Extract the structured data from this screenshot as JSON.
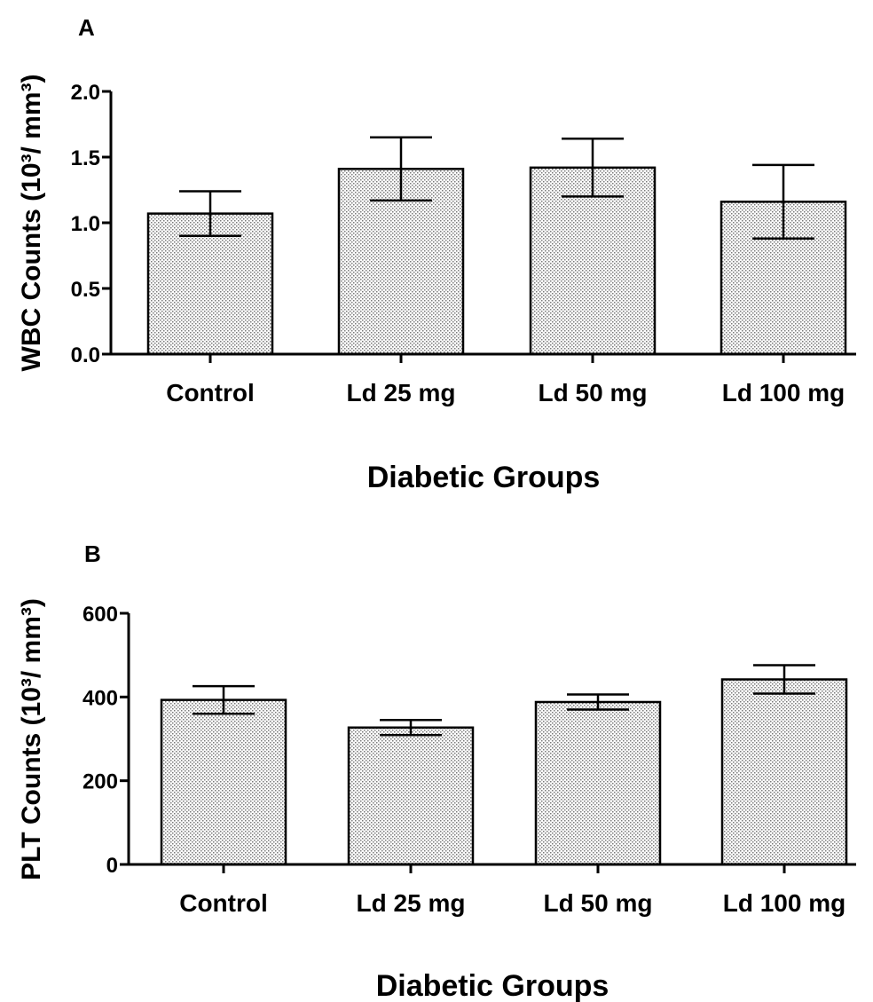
{
  "chart_data": [
    {
      "type": "bar",
      "panel": "A",
      "categories": [
        "Control",
        "Ld 25 mg",
        "Ld 50 mg",
        "Ld 100 mg"
      ],
      "values": [
        1.07,
        1.41,
        1.42,
        1.16
      ],
      "errors": [
        0.17,
        0.24,
        0.22,
        0.28
      ],
      "ylim": [
        0,
        2.0
      ],
      "yticks": [
        0.0,
        0.5,
        1.0,
        1.5,
        2.0
      ],
      "ytick_labels": [
        "0.0",
        "0.5",
        "1.0",
        "1.5",
        "2.0"
      ],
      "xlabel": "Diabetic Groups",
      "ylabel": "WBC Counts (10³/ mm³)",
      "grid": false,
      "legend": "none",
      "bar_pattern": "dotted-gray"
    },
    {
      "type": "bar",
      "panel": "B",
      "categories": [
        "Control",
        "Ld 25 mg",
        "Ld 50 mg",
        "Ld 100 mg"
      ],
      "values": [
        393,
        327,
        388,
        442
      ],
      "errors": [
        33,
        18,
        18,
        34
      ],
      "ylim": [
        0,
        600
      ],
      "yticks": [
        0,
        200,
        400,
        600
      ],
      "ytick_labels": [
        "0",
        "200",
        "400",
        "600"
      ],
      "xlabel": "Diabetic Groups",
      "ylabel": "PLT Counts (10³/ mm³)",
      "grid": false,
      "legend": "none",
      "bar_pattern": "dotted-gray"
    }
  ]
}
